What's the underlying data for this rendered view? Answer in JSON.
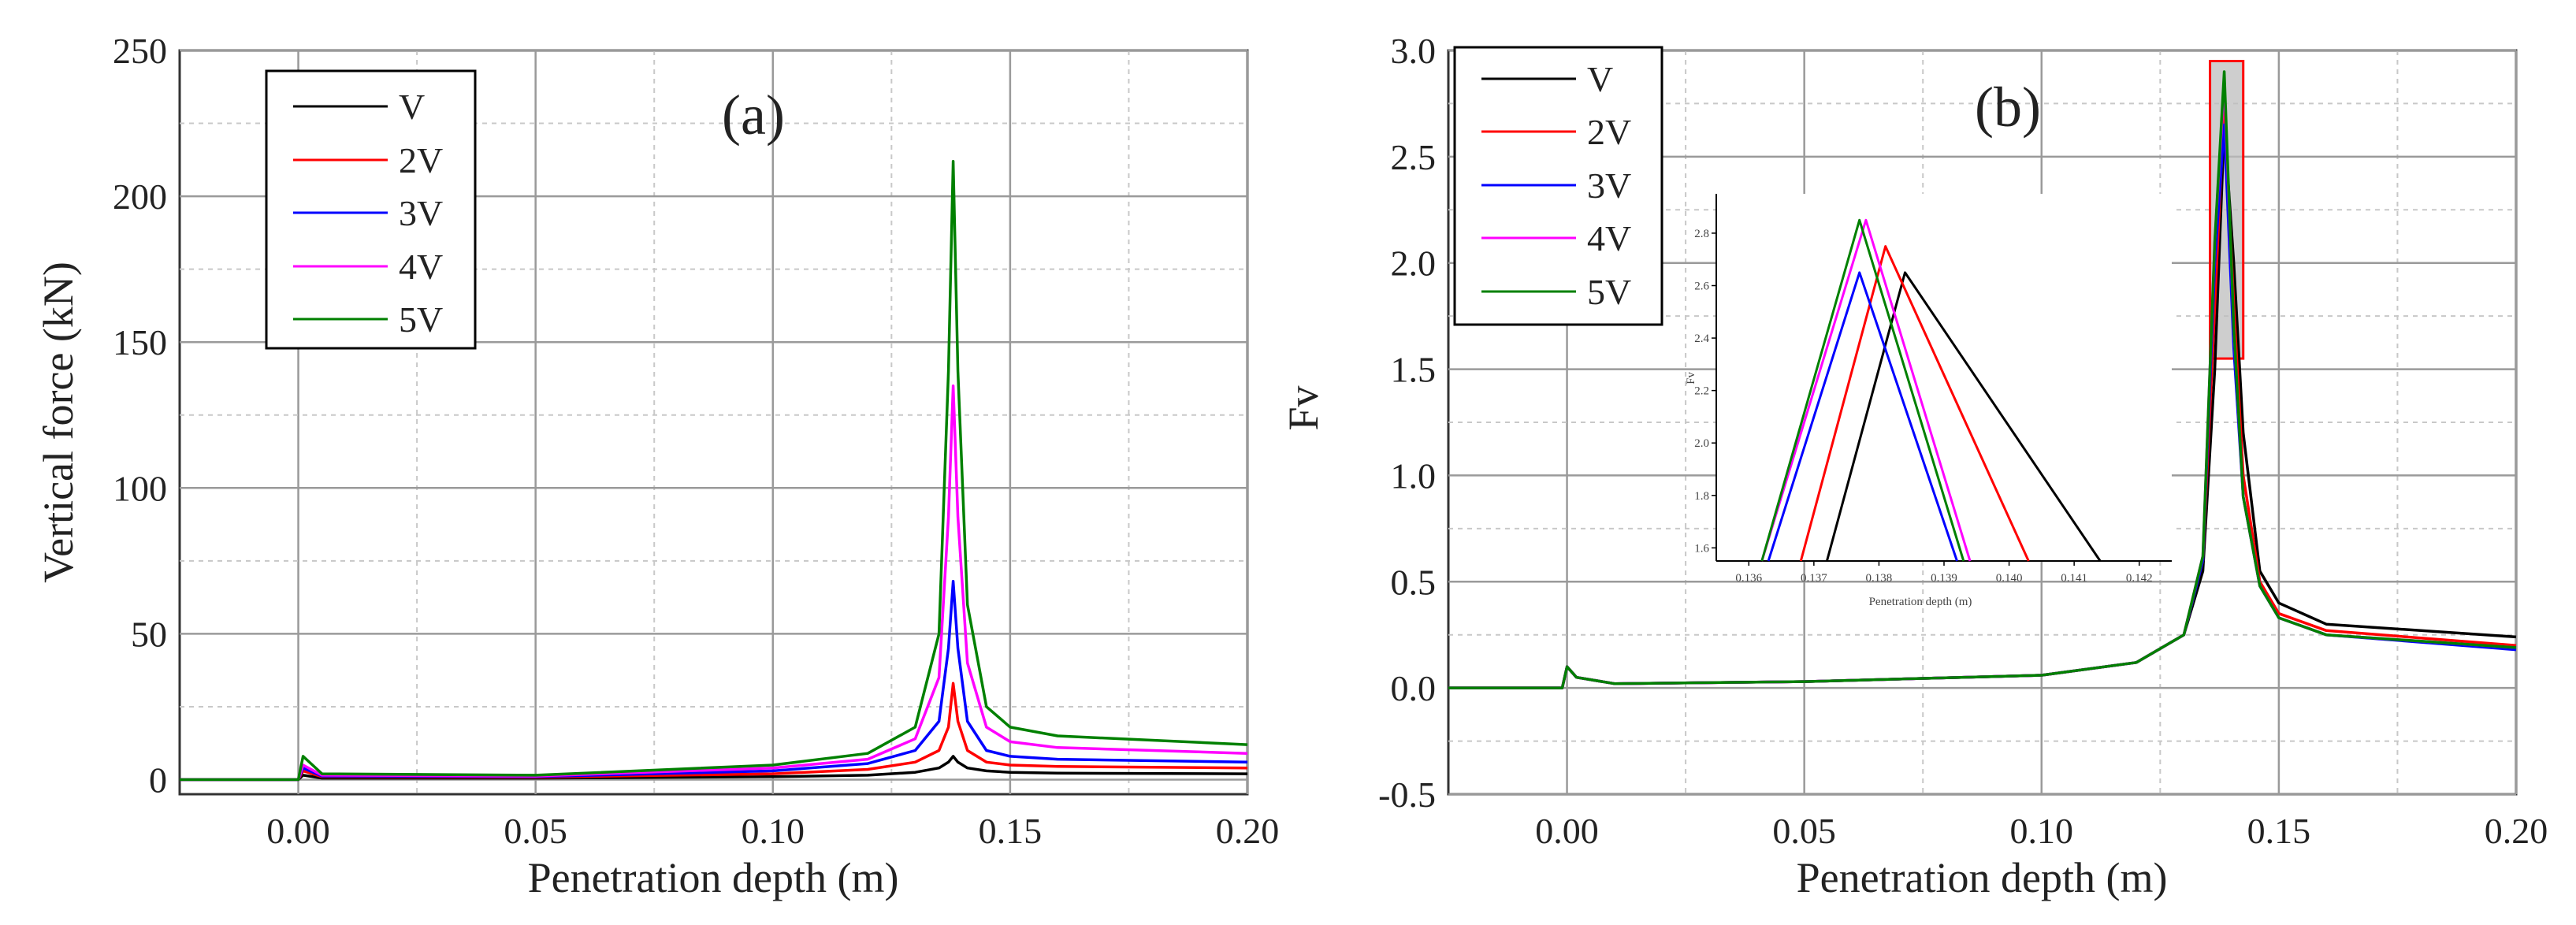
{
  "colors": {
    "V": "#000000",
    "2V": "#ff0000",
    "3V": "#0000ff",
    "4V": "#ff00ff",
    "5V": "#008000"
  },
  "chart_data": [
    {
      "type": "line",
      "panel": "(a)",
      "xlabel": "Penetration depth (m)",
      "ylabel": "Vertical force (kN)",
      "xlim": [
        -0.025,
        0.2
      ],
      "ylim": [
        -5,
        250
      ],
      "xticks": [
        0.0,
        0.05,
        0.1,
        0.15,
        0.2
      ],
      "xtick_labels": [
        "0.00",
        "0.05",
        "0.10",
        "0.15",
        "0.20"
      ],
      "yticks": [
        0,
        50,
        100,
        150,
        200,
        250
      ],
      "ytick_labels": [
        "0",
        "50",
        "100",
        "150",
        "200",
        "250"
      ],
      "legend": [
        "V",
        "2V",
        "3V",
        "4V",
        "5V"
      ],
      "legend_position": "top-left",
      "grid": true,
      "series": [
        {
          "name": "V",
          "x": [
            -0.025,
            0.0,
            0.001,
            0.005,
            0.05,
            0.1,
            0.12,
            0.13,
            0.135,
            0.137,
            0.138,
            0.139,
            0.141,
            0.145,
            0.15,
            0.16,
            0.2
          ],
          "y": [
            0,
            0,
            1.5,
            0.5,
            0.5,
            1,
            1.5,
            2.5,
            4,
            6,
            8,
            6,
            4,
            3,
            2.5,
            2.2,
            2
          ]
        },
        {
          "name": "2V",
          "x": [
            -0.025,
            0.0,
            0.001,
            0.005,
            0.05,
            0.1,
            0.12,
            0.13,
            0.135,
            0.137,
            0.138,
            0.139,
            0.141,
            0.145,
            0.15,
            0.16,
            0.2
          ],
          "y": [
            0,
            0,
            3,
            1,
            0.8,
            2,
            3.5,
            6,
            10,
            18,
            33,
            20,
            10,
            6,
            5,
            4.5,
            4
          ]
        },
        {
          "name": "3V",
          "x": [
            -0.025,
            0.0,
            0.001,
            0.005,
            0.05,
            0.1,
            0.12,
            0.13,
            0.135,
            0.137,
            0.138,
            0.139,
            0.141,
            0.145,
            0.15,
            0.16,
            0.2
          ],
          "y": [
            0,
            0,
            4,
            1.2,
            1,
            3,
            5.5,
            10,
            20,
            45,
            68,
            45,
            20,
            10,
            8,
            7,
            6
          ]
        },
        {
          "name": "4V",
          "x": [
            -0.025,
            0.0,
            0.001,
            0.005,
            0.05,
            0.1,
            0.12,
            0.13,
            0.135,
            0.137,
            0.138,
            0.139,
            0.141,
            0.145,
            0.15,
            0.16,
            0.2
          ],
          "y": [
            0,
            0,
            5,
            1.5,
            1.2,
            4,
            7,
            14,
            35,
            90,
            135,
            90,
            40,
            18,
            13,
            11,
            9
          ]
        },
        {
          "name": "5V",
          "x": [
            -0.025,
            0.0,
            0.001,
            0.005,
            0.05,
            0.1,
            0.12,
            0.13,
            0.135,
            0.137,
            0.138,
            0.139,
            0.141,
            0.145,
            0.15,
            0.16,
            0.2
          ],
          "y": [
            0,
            0,
            8,
            2,
            1.5,
            5,
            9,
            18,
            50,
            140,
            212,
            140,
            60,
            25,
            18,
            15,
            12
          ]
        }
      ]
    },
    {
      "type": "line",
      "panel": "(b)",
      "xlabel": "Penetration depth (m)",
      "ylabel": "Fv",
      "xlim": [
        -0.025,
        0.2
      ],
      "ylim": [
        -0.5,
        3.0
      ],
      "xticks": [
        0.0,
        0.05,
        0.1,
        0.15,
        0.2
      ],
      "xtick_labels": [
        "0.00",
        "0.05",
        "0.10",
        "0.15",
        "0.20"
      ],
      "yticks": [
        -0.5,
        0.0,
        0.5,
        1.0,
        1.5,
        2.0,
        2.5,
        3.0
      ],
      "ytick_labels": [
        "-0.5",
        "0.0",
        "0.5",
        "1.0",
        "1.5",
        "2.0",
        "2.5",
        "3.0"
      ],
      "legend": [
        "V",
        "2V",
        "3V",
        "4V",
        "5V"
      ],
      "legend_position": "top-left",
      "grid": true,
      "series": [
        {
          "name": "V",
          "x": [
            -0.025,
            -0.001,
            0.0,
            0.002,
            0.01,
            0.05,
            0.1,
            0.12,
            0.13,
            0.134,
            0.1365,
            0.1385,
            0.1405,
            0.1425,
            0.146,
            0.15,
            0.16,
            0.2
          ],
          "y": [
            0,
            0,
            0.1,
            0.05,
            0.02,
            0.03,
            0.06,
            0.12,
            0.25,
            0.55,
            1.5,
            2.65,
            2.0,
            1.2,
            0.55,
            0.4,
            0.3,
            0.24
          ]
        },
        {
          "name": "2V",
          "x": [
            -0.025,
            -0.001,
            0.0,
            0.002,
            0.01,
            0.05,
            0.1,
            0.12,
            0.13,
            0.134,
            0.1365,
            0.1385,
            0.1405,
            0.1425,
            0.146,
            0.15,
            0.16,
            0.2
          ],
          "y": [
            0,
            0,
            0.1,
            0.05,
            0.02,
            0.03,
            0.06,
            0.12,
            0.25,
            0.6,
            1.8,
            2.75,
            1.8,
            1.0,
            0.5,
            0.35,
            0.27,
            0.2
          ]
        },
        {
          "name": "3V",
          "x": [
            -0.025,
            -0.001,
            0.0,
            0.002,
            0.01,
            0.05,
            0.1,
            0.12,
            0.13,
            0.134,
            0.1365,
            0.1385,
            0.1405,
            0.1425,
            0.146,
            0.15,
            0.16,
            0.2
          ],
          "y": [
            0,
            0,
            0.1,
            0.05,
            0.02,
            0.03,
            0.06,
            0.12,
            0.25,
            0.6,
            2.0,
            2.65,
            1.6,
            0.9,
            0.48,
            0.33,
            0.25,
            0.18
          ]
        },
        {
          "name": "4V",
          "x": [
            -0.025,
            -0.001,
            0.0,
            0.002,
            0.01,
            0.05,
            0.1,
            0.12,
            0.13,
            0.134,
            0.1365,
            0.1385,
            0.1405,
            0.1425,
            0.146,
            0.15,
            0.16,
            0.2
          ],
          "y": [
            0,
            0,
            0.1,
            0.05,
            0.02,
            0.03,
            0.06,
            0.12,
            0.25,
            0.62,
            2.1,
            2.85,
            1.7,
            0.9,
            0.48,
            0.33,
            0.25,
            0.19
          ]
        },
        {
          "name": "5V",
          "x": [
            -0.025,
            -0.001,
            0.0,
            0.002,
            0.01,
            0.05,
            0.1,
            0.12,
            0.13,
            0.134,
            0.1365,
            0.1385,
            0.1405,
            0.1425,
            0.146,
            0.15,
            0.16,
            0.2
          ],
          "y": [
            0,
            0,
            0.1,
            0.05,
            0.02,
            0.03,
            0.06,
            0.12,
            0.25,
            0.62,
            2.1,
            2.9,
            1.7,
            0.9,
            0.48,
            0.33,
            0.25,
            0.19
          ]
        }
      ],
      "highlight_region": {
        "x": [
          0.1355,
          0.1425
        ],
        "y": [
          1.55,
          2.95
        ]
      },
      "inset": {
        "xlabel": "Penetration depth (m)",
        "ylabel": "Fv",
        "xlim": [
          0.1355,
          0.1425
        ],
        "ylim": [
          1.55,
          2.95
        ],
        "xticks": [
          0.136,
          0.137,
          0.138,
          0.139,
          0.14,
          0.141,
          0.142
        ],
        "xtick_labels": [
          "0.136",
          "0.137",
          "0.138",
          "0.139",
          "0.140",
          "0.141",
          "0.142"
        ],
        "yticks": [
          1.6,
          1.8,
          2.0,
          2.2,
          2.4,
          2.6,
          2.8
        ],
        "ytick_labels": [
          "1.6",
          "1.8",
          "2.0",
          "2.2",
          "2.4",
          "2.6",
          "2.8"
        ],
        "series": [
          {
            "name": "V",
            "x": [
              0.1372,
              0.1384,
              0.1414
            ],
            "y": [
              1.55,
              2.65,
              1.55
            ]
          },
          {
            "name": "2V",
            "x": [
              0.1368,
              0.1381,
              0.1403
            ],
            "y": [
              1.55,
              2.75,
              1.55
            ]
          },
          {
            "name": "3V",
            "x": [
              0.1363,
              0.1377,
              0.1392
            ],
            "y": [
              1.55,
              2.65,
              1.55
            ]
          },
          {
            "name": "4V",
            "x": [
              0.1362,
              0.1378,
              0.1394
            ],
            "y": [
              1.55,
              2.85,
              1.55
            ]
          },
          {
            "name": "5V",
            "x": [
              0.1362,
              0.1377,
              0.1393
            ],
            "y": [
              1.55,
              2.85,
              1.55
            ]
          }
        ]
      }
    }
  ]
}
